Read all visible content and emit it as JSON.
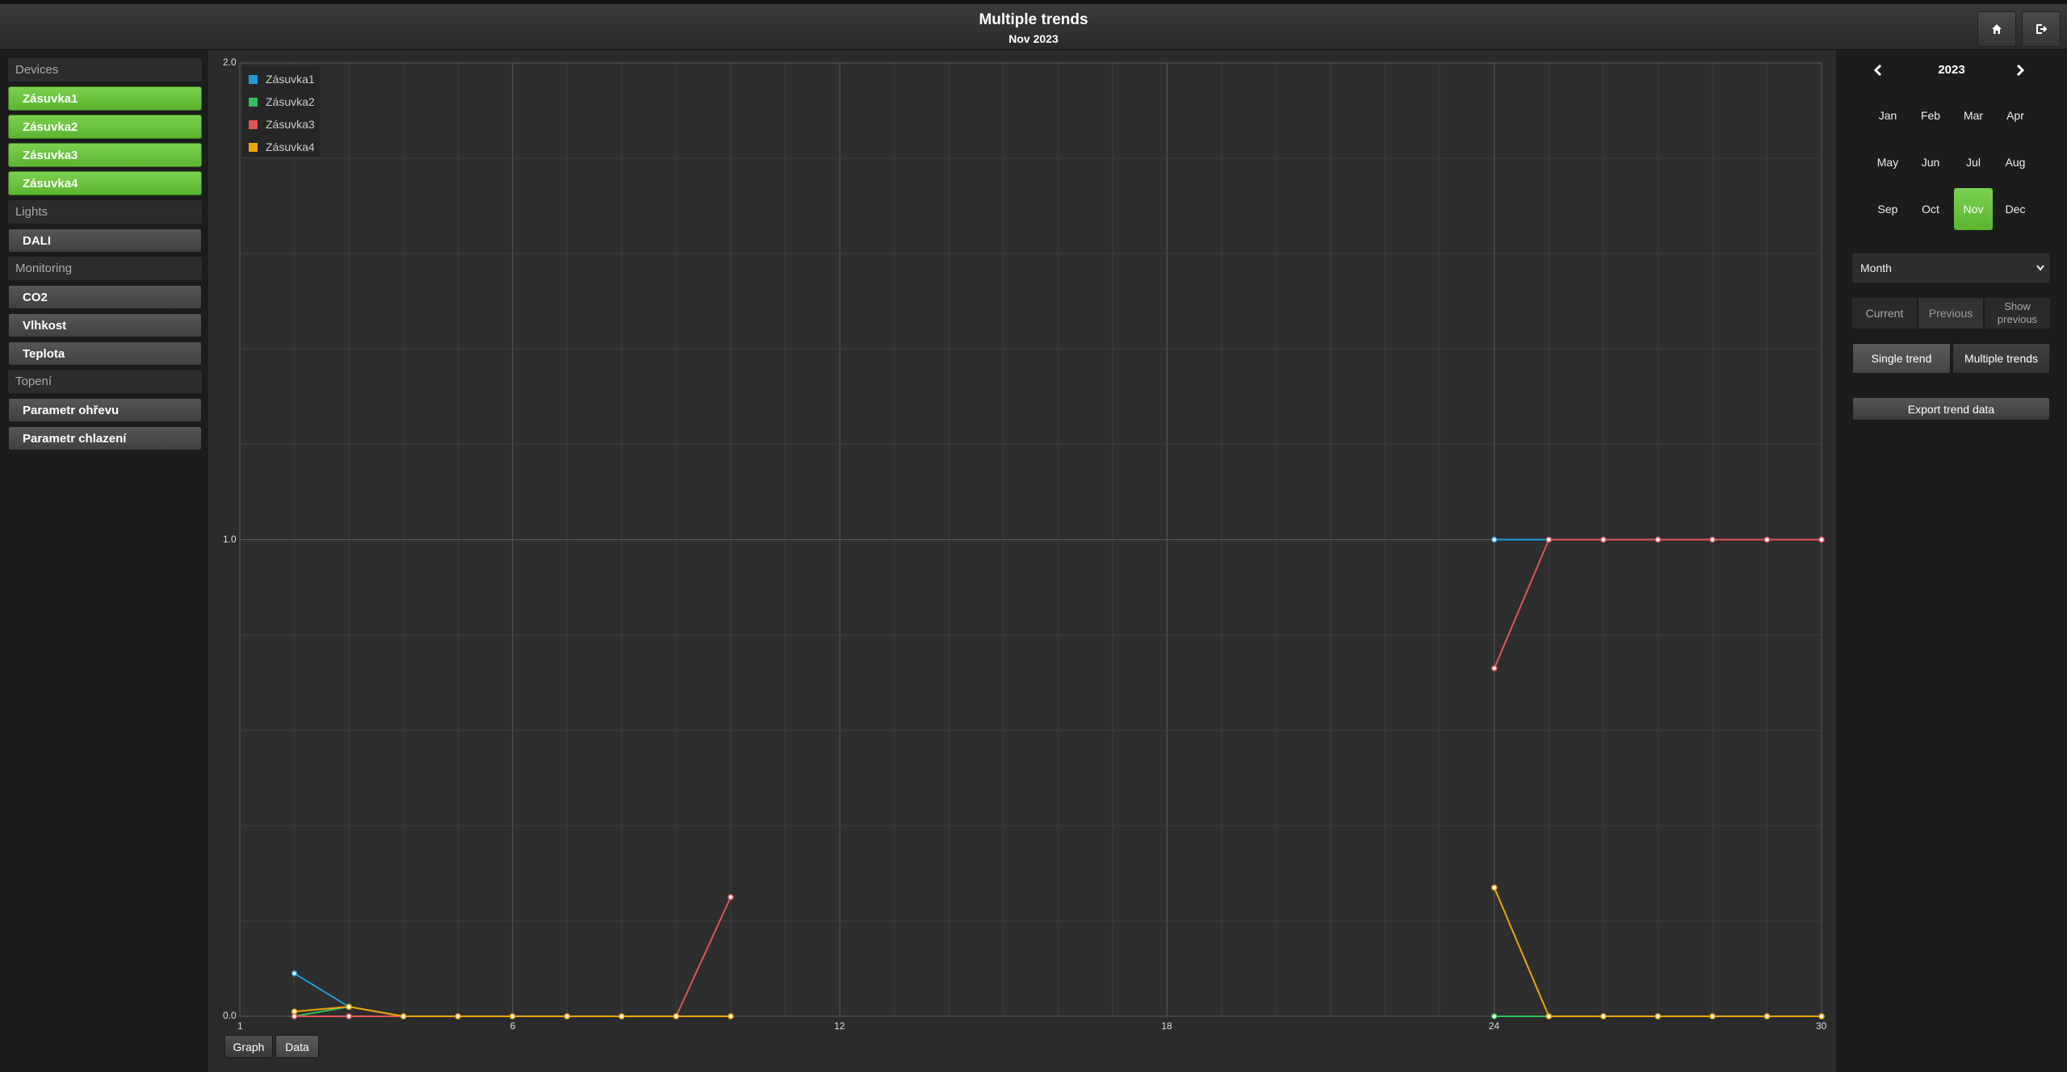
{
  "header": {
    "title": "Multiple trends",
    "subtitle": "Nov 2023"
  },
  "sidebar": {
    "groups": [
      {
        "label": "Devices",
        "items": [
          {
            "label": "Zásuvka1",
            "active": true
          },
          {
            "label": "Zásuvka2",
            "active": true
          },
          {
            "label": "Zásuvka3",
            "active": true
          },
          {
            "label": "Zásuvka4",
            "active": true
          }
        ]
      },
      {
        "label": "Lights",
        "items": [
          {
            "label": "DALI",
            "active": false
          }
        ]
      },
      {
        "label": "Monitoring",
        "items": [
          {
            "label": "CO2",
            "active": false
          },
          {
            "label": "Vlhkost",
            "active": false
          },
          {
            "label": "Teplota",
            "active": false
          }
        ]
      },
      {
        "label": "Topení",
        "items": [
          {
            "label": "Parametr ohřevu",
            "active": false
          },
          {
            "label": "Parametr chlazení",
            "active": false
          }
        ]
      }
    ]
  },
  "view_buttons": {
    "graph": "Graph",
    "data": "Data"
  },
  "calendar": {
    "year": "2023",
    "months": [
      "Jan",
      "Feb",
      "Mar",
      "Apr",
      "May",
      "Jun",
      "Jul",
      "Aug",
      "Sep",
      "Oct",
      "Nov",
      "Dec"
    ],
    "selected": "Nov"
  },
  "controls": {
    "period_select": "Month",
    "current": "Current",
    "previous": "Previous",
    "show_previous": "Show previous",
    "single_trend": "Single trend",
    "multiple_trends": "Multiple trends",
    "export": "Export trend data"
  },
  "chart_data": {
    "type": "line",
    "xlim": [
      1,
      30
    ],
    "ylim": [
      0,
      2
    ],
    "xticks": [
      "1",
      "6",
      "12",
      "18",
      "24",
      "30"
    ],
    "yticks": [
      "0.0",
      "1.0",
      "2.0"
    ],
    "legend_position": "top-left",
    "grid": true,
    "series": [
      {
        "name": "Zásuvka1",
        "color": "#1f9bd7",
        "points": [
          [
            2,
            0.09
          ],
          [
            3,
            0.02
          ],
          [
            24,
            1.0
          ],
          [
            25,
            1.0
          ],
          [
            26,
            1.0
          ],
          [
            27,
            1.0
          ],
          [
            28,
            1.0
          ],
          [
            29,
            1.0
          ],
          [
            30,
            1.0
          ]
        ]
      },
      {
        "name": "Zásuvka2",
        "color": "#2ec25a",
        "points": [
          [
            2,
            0.0
          ],
          [
            3,
            0.02
          ],
          [
            4,
            0.0
          ],
          [
            24,
            0.0
          ],
          [
            25,
            0.0
          ],
          [
            26,
            0.0
          ],
          [
            27,
            0.0
          ],
          [
            28,
            0.0
          ],
          [
            29,
            0.0
          ],
          [
            30,
            0.0
          ]
        ]
      },
      {
        "name": "Zásuvka3",
        "color": "#e05555",
        "points": [
          [
            2,
            0.0
          ],
          [
            3,
            0.0
          ],
          [
            4,
            0.0
          ],
          [
            5,
            0.0
          ],
          [
            6,
            0.0
          ],
          [
            7,
            0.0
          ],
          [
            8,
            0.0
          ],
          [
            9,
            0.0
          ],
          [
            10,
            0.25
          ],
          [
            24,
            0.73
          ],
          [
            25,
            1.0
          ],
          [
            26,
            1.0
          ],
          [
            27,
            1.0
          ],
          [
            28,
            1.0
          ],
          [
            29,
            1.0
          ],
          [
            30,
            1.0
          ]
        ]
      },
      {
        "name": "Zásuvka4",
        "color": "#f0a30a",
        "points": [
          [
            2,
            0.01
          ],
          [
            3,
            0.02
          ],
          [
            4,
            0.0
          ],
          [
            5,
            0.0
          ],
          [
            6,
            0.0
          ],
          [
            7,
            0.0
          ],
          [
            8,
            0.0
          ],
          [
            9,
            0.0
          ],
          [
            10,
            0.0
          ],
          [
            24,
            0.27
          ],
          [
            25,
            0.0
          ],
          [
            26,
            0.0
          ],
          [
            27,
            0.0
          ],
          [
            28,
            0.0
          ],
          [
            29,
            0.0
          ],
          [
            30,
            0.0
          ]
        ]
      }
    ]
  }
}
